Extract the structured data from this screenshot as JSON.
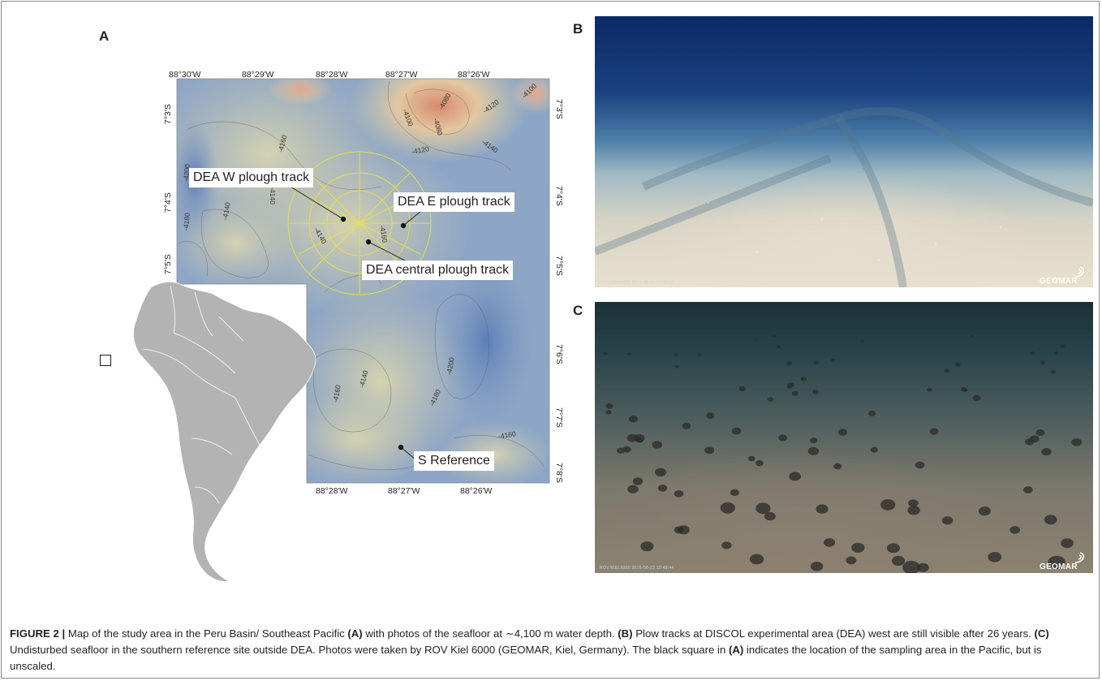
{
  "panel_labels": {
    "a": "A",
    "b": "B",
    "c": "C"
  },
  "map": {
    "top_lon_labels": [
      "88°30'W",
      "88°29'W",
      "88°28'W",
      "88°27'W",
      "88°26'W"
    ],
    "bottom_lon_labels": [
      "88°28'W",
      "88°27'W",
      "88°26'W"
    ],
    "left_lat_labels": [
      "7°3'S",
      "7°4'S",
      "7°5'S"
    ],
    "right_lat_labels": [
      "7°3'S",
      "7°4'S",
      "7°5'S",
      "7°6'S",
      "7°7'S",
      "7°8'S"
    ],
    "contours": [
      "-4080",
      "-4100",
      "-4080",
      "-4120",
      "-4100",
      "-4120",
      "-4140",
      "-4160",
      "-4200",
      "-4180",
      "-4140",
      "-4140",
      "-4140",
      "-4160",
      "-4160",
      "-4140",
      "-4180",
      "-4200",
      "-4160"
    ],
    "callouts": {
      "dea_w": "DEA W plough track",
      "dea_e": "DEA E plough track",
      "dea_central": "DEA central plough track",
      "s_ref": "S Reference"
    },
    "colors": {
      "deep": "#6f8fbf",
      "mid": "#c9c7a8",
      "shallow": "#d98b6e",
      "target_rings": "#e6e04a",
      "land": "#b3b3b3"
    }
  },
  "photos": {
    "b_stamp": "ROV KIEL6000   2015-08-31 13:40:07",
    "c_stamp": "ROV KIEL6000   2015-08-22 10:48:44",
    "logo_text": "GEOMAR"
  },
  "caption": {
    "figure_label": "FIGURE 2 |",
    "t1": " Map of the study area in the Peru Basin/ Southeast Pacific ",
    "ref_a": "(A)",
    "t2": " with photos of the seafloor at ∼4,100 m water depth. ",
    "ref_b": "(B)",
    "t3": " Plow tracks at DISCOL experimental area (DEA) west are still visible after 26 years. ",
    "ref_c": "(C)",
    "t4": " Undisturbed seafloor in the southern reference site outside DEA. Photos were taken by ROV Kiel 6000 (GEOMAR, Kiel, Germany). The black square in ",
    "ref_a2": "(A)",
    "t5": " indicates the location of the sampling area in the Pacific, but is unscaled."
  }
}
